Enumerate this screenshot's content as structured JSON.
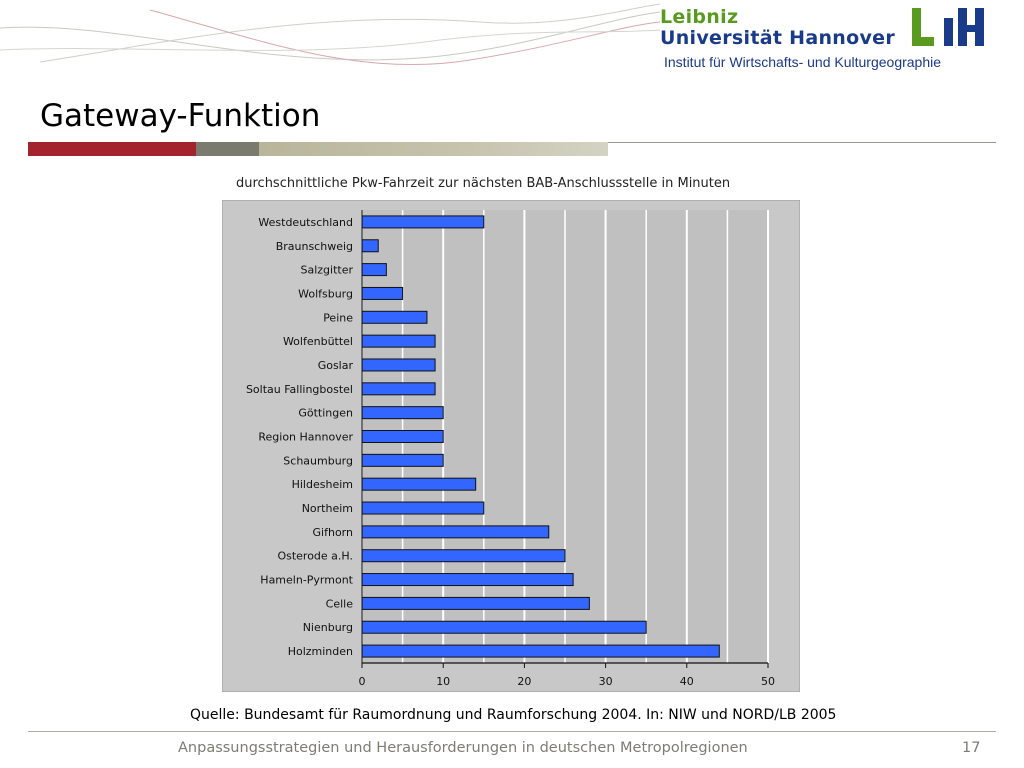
{
  "header": {
    "logo_line1": "Leibniz",
    "logo_line2": "Universität Hannover",
    "logo_line3": "Institut für Wirtschafts- und Kulturgeographie",
    "logo_green": "#5a9a1e",
    "logo_blue": "#1a3a8a"
  },
  "slide": {
    "title": "Gateway-Funktion",
    "accent_red": "#a3242c",
    "accent_grey": "#7a7a6e",
    "accent_khaki": "#b8b59a"
  },
  "chart_data": {
    "type": "bar",
    "orientation": "horizontal",
    "title": "durchschnittliche Pkw-Fahrzeit zur nächsten BAB-Anschlussstelle in Minuten",
    "categories": [
      "Westdeutschland",
      "Braunschweig",
      "Salzgitter",
      "Wolfsburg",
      "Peine",
      "Wolfenbüttel",
      "Goslar",
      "Soltau Fallingbostel",
      "Göttingen",
      "Region Hannover",
      "Schaumburg",
      "Hildesheim",
      "Northeim",
      "Gifhorn",
      "Osterode a.H.",
      "Hameln-Pyrmont",
      "Celle",
      "Nienburg",
      "Holzminden"
    ],
    "values": [
      15,
      2,
      3,
      5,
      8,
      9,
      9,
      9,
      10,
      10,
      10,
      14,
      15,
      23,
      25,
      26,
      28,
      35,
      44
    ],
    "xlim": [
      0,
      50
    ],
    "xticks": [
      "0",
      "10",
      "20",
      "30",
      "40",
      "50"
    ],
    "grid": true,
    "bar_color": "#3366ff",
    "plot_bg": "#c0c0c0",
    "frame_bg": "#c8c8c8"
  },
  "source_note": "Quelle: Bundesamt für Raumordnung und Raumforschung 2004. In: NIW und NORD/LB 2005",
  "footer": {
    "text": "Anpassungsstrategien und Herausforderungen in deutschen Metropolregionen",
    "page_number": "17"
  }
}
